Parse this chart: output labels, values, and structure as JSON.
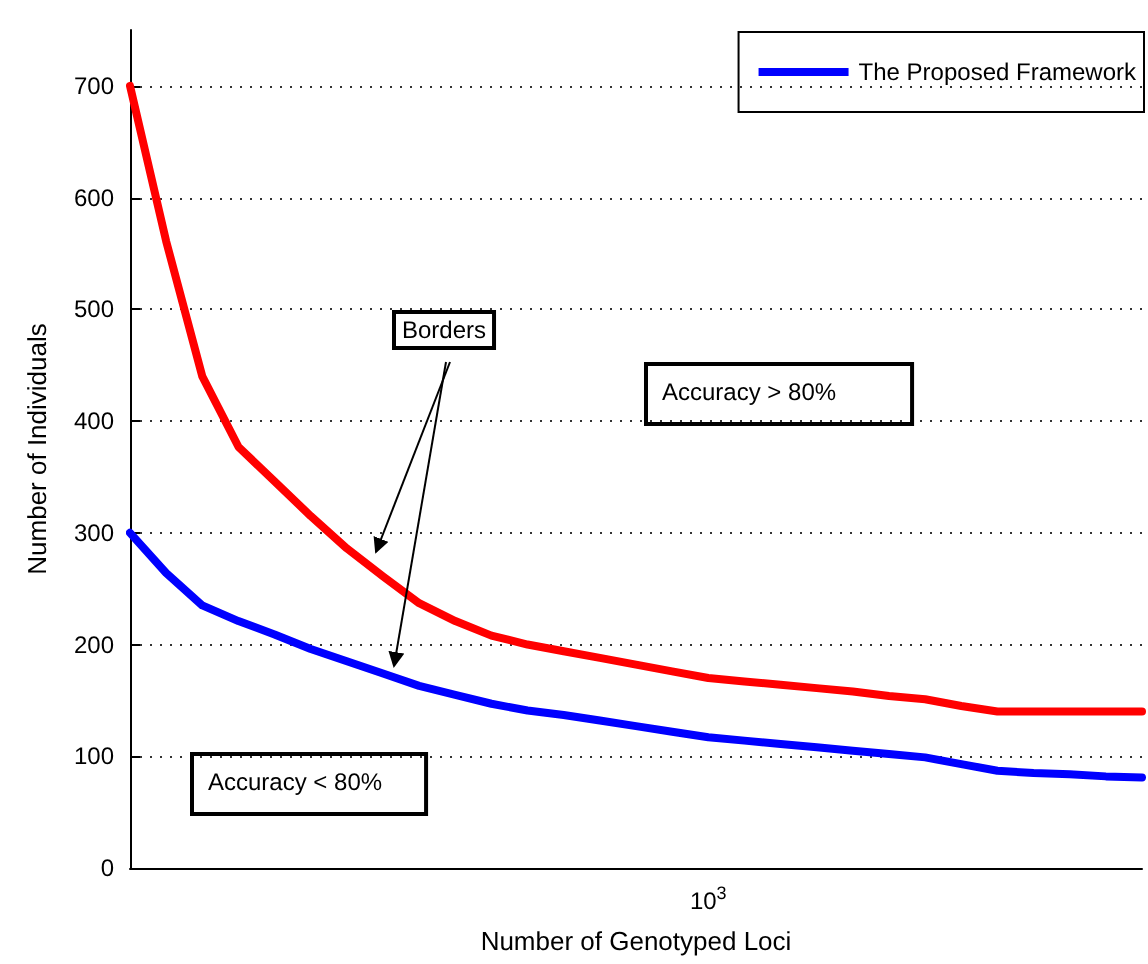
{
  "chart_data": {
    "type": "line",
    "xlabel": "Number of Genotyped Loci",
    "ylabel": "Number of Individuals",
    "categories": [
      null,
      null,
      null,
      null,
      null,
      null,
      null,
      null,
      null,
      null,
      null,
      null,
      null,
      null,
      null,
      null,
      "10$^{3}$",
      null,
      null,
      null,
      null,
      null,
      null,
      null,
      null,
      null,
      null,
      null,
      null
    ],
    "series": [
      {
        "name": "The Proposed Framework",
        "color": "#0000ff",
        "values": [
          300,
          264,
          235,
          221,
          209,
          196,
          185,
          174,
          163,
          155,
          147,
          141,
          137,
          132,
          127,
          122,
          117,
          114,
          111,
          108,
          105,
          102,
          99,
          93,
          87,
          85,
          84,
          82,
          81
        ]
      },
      {
        "color": "#ff0000",
        "values": [
          700,
          561,
          440,
          377,
          346,
          315,
          286,
          261,
          237,
          221,
          208,
          200,
          194,
          188,
          182,
          176,
          170,
          167,
          164,
          161,
          158,
          154,
          151,
          145,
          140,
          140,
          140,
          140,
          140
        ]
      }
    ],
    "ylim": [
      0,
      750
    ],
    "yticks": [
      0,
      100,
      200,
      300,
      400,
      500,
      600,
      700
    ],
    "grid": "y",
    "legend": "top right",
    "marker": "none",
    "line_style": "solid",
    "annotations": [
      "Borders",
      "Accuracy > 80%",
      "Accuracy < 80%"
    ]
  }
}
